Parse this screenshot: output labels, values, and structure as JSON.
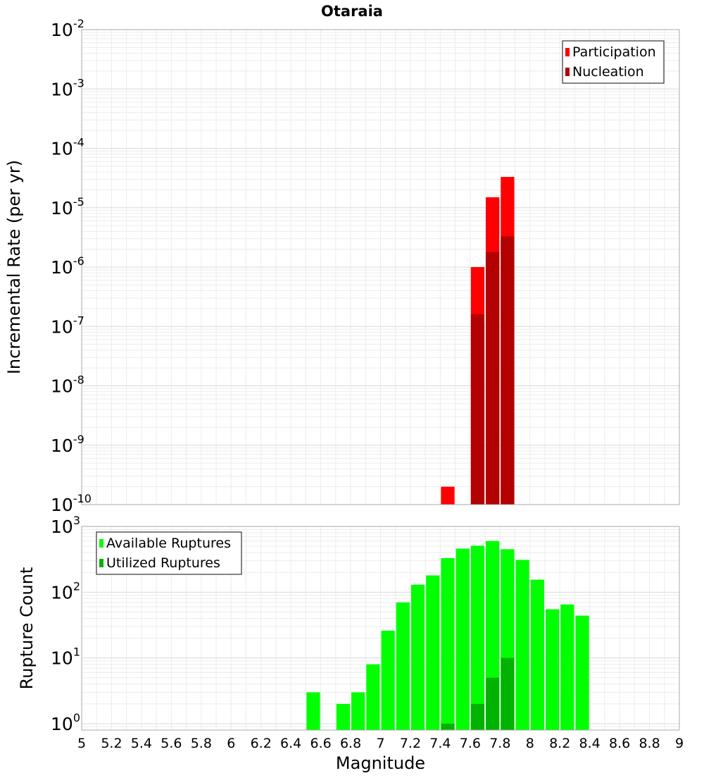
{
  "chart_data": [
    {
      "type": "bar",
      "title": "Otaraia",
      "xlabel": "",
      "ylabel": "Incremental Rate (per yr)",
      "yscale": "log",
      "ylim": [
        1e-10,
        0.01
      ],
      "xlim": [
        5,
        9
      ],
      "y_tick_labels": [
        {
          "base": "10",
          "exp": "-10",
          "value": 1e-10
        },
        {
          "base": "10",
          "exp": "-9",
          "value": 1e-09
        },
        {
          "base": "10",
          "exp": "-8",
          "value": 1e-08
        },
        {
          "base": "10",
          "exp": "-7",
          "value": 1e-07
        },
        {
          "base": "10",
          "exp": "-6",
          "value": 1e-06
        },
        {
          "base": "10",
          "exp": "-5",
          "value": 1e-05
        },
        {
          "base": "10",
          "exp": "-4",
          "value": 0.0001
        },
        {
          "base": "10",
          "exp": "-3",
          "value": 0.001
        },
        {
          "base": "10",
          "exp": "-2",
          "value": 0.01
        }
      ],
      "grid": true,
      "legend_position": "top-right",
      "bin_width": 0.1,
      "series": [
        {
          "name": "Participation",
          "color": "#ff0000",
          "points": [
            {
              "x": 7.45,
              "y": 2e-10
            },
            {
              "x": 7.65,
              "y": 1e-06
            },
            {
              "x": 7.75,
              "y": 1.5e-05
            },
            {
              "x": 7.85,
              "y": 3.3e-05
            }
          ]
        },
        {
          "name": "Nucleation",
          "color": "#b30000",
          "points": [
            {
              "x": 7.65,
              "y": 1.6e-07
            },
            {
              "x": 7.75,
              "y": 1.8e-06
            },
            {
              "x": 7.85,
              "y": 3.3e-06
            }
          ]
        }
      ]
    },
    {
      "type": "bar",
      "title": "",
      "xlabel": "Magnitude",
      "ylabel": "Rupture Count",
      "yscale": "log",
      "ylim": [
        0.8,
        1000
      ],
      "xlim": [
        5,
        9
      ],
      "y_tick_labels": [
        {
          "base": "10",
          "exp": "0",
          "value": 1
        },
        {
          "base": "10",
          "exp": "1",
          "value": 10
        },
        {
          "base": "10",
          "exp": "2",
          "value": 100
        },
        {
          "base": "10",
          "exp": "3",
          "value": 1000
        }
      ],
      "x_tick_labels": [
        "5",
        "5.2",
        "5.4",
        "5.6",
        "5.8",
        "6",
        "6.2",
        "6.4",
        "6.6",
        "6.8",
        "7",
        "7.2",
        "7.4",
        "7.6",
        "7.8",
        "8",
        "8.2",
        "8.4",
        "8.6",
        "8.8",
        "9"
      ],
      "grid": true,
      "legend_position": "top-left",
      "bin_width": 0.1,
      "series": [
        {
          "name": "Available Ruptures",
          "color": "#00ff00",
          "points": [
            {
              "x": 6.55,
              "y": 3
            },
            {
              "x": 6.75,
              "y": 2
            },
            {
              "x": 6.85,
              "y": 3
            },
            {
              "x": 6.95,
              "y": 8
            },
            {
              "x": 7.05,
              "y": 26
            },
            {
              "x": 7.15,
              "y": 70
            },
            {
              "x": 7.25,
              "y": 130
            },
            {
              "x": 7.35,
              "y": 180
            },
            {
              "x": 7.45,
              "y": 330
            },
            {
              "x": 7.55,
              "y": 460
            },
            {
              "x": 7.65,
              "y": 510
            },
            {
              "x": 7.75,
              "y": 600
            },
            {
              "x": 7.85,
              "y": 450
            },
            {
              "x": 7.95,
              "y": 310
            },
            {
              "x": 8.05,
              "y": 155
            },
            {
              "x": 8.15,
              "y": 55
            },
            {
              "x": 8.25,
              "y": 65
            },
            {
              "x": 8.35,
              "y": 44
            }
          ]
        },
        {
          "name": "Utilized Ruptures",
          "color": "#00b300",
          "points": [
            {
              "x": 7.45,
              "y": 1
            },
            {
              "x": 7.65,
              "y": 2
            },
            {
              "x": 7.75,
              "y": 5
            },
            {
              "x": 7.85,
              "y": 10
            }
          ]
        }
      ]
    }
  ]
}
